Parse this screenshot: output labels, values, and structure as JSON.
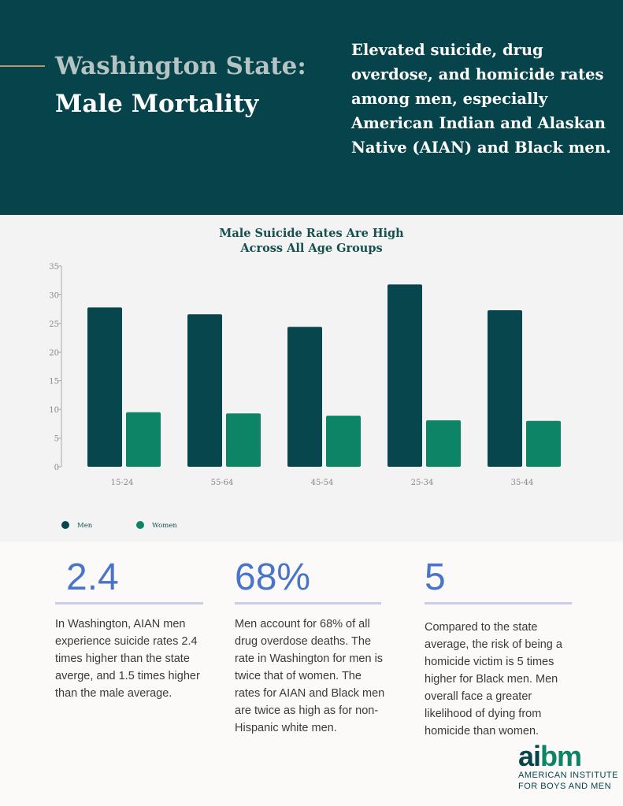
{
  "header": {
    "title_line1": "Washington State:",
    "title_line2": "Male Mortality",
    "subtitle": "Elevated suicide, drug overdose, and homicide rates among men, especially American Indian and Alaskan Native (AIAN) and Black men."
  },
  "chart_data": {
    "type": "bar",
    "title_line1": "Male Suicide Rates Are High",
    "title_line2": "Across All Age Groups",
    "categories": [
      "15-24",
      "55-64",
      "45-54",
      "25-34",
      "35-44"
    ],
    "series": [
      {
        "name": "Men",
        "color": "#07464c",
        "values": [
          27.8,
          26.6,
          24.4,
          31.8,
          27.3
        ]
      },
      {
        "name": "Women",
        "color": "#0d8466",
        "values": [
          9.5,
          9.3,
          8.9,
          8.1,
          8.0
        ]
      }
    ],
    "ylim": [
      0,
      35
    ],
    "yticks": [
      0,
      5,
      10,
      15,
      20,
      25,
      30,
      35
    ],
    "grid": false,
    "legend": "bottom-left"
  },
  "stats": [
    {
      "value": "2.4",
      "text": "In Washington, AIAN men experience suicide rates 2.4 times higher than the state averge, and 1.5 times higher than the male average."
    },
    {
      "value": "68%",
      "text": "Men account for 68% of all drug overdose deaths. The rate in Washington for men is twice that of women. The rates for AIAN and Black men are twice as high as for non-Hispanic white men."
    },
    {
      "value": "5",
      "text": "Compared to the state average, the risk of being a homicide victim is 5 times higher for Black men. Men overall face a greater likelihood of dying from homicide than women."
    }
  ],
  "logo": {
    "word_a": "ai",
    "word_b": "bm",
    "line1": "AMERICAN INSTITUTE",
    "line2": "FOR BOYS AND MEN"
  }
}
